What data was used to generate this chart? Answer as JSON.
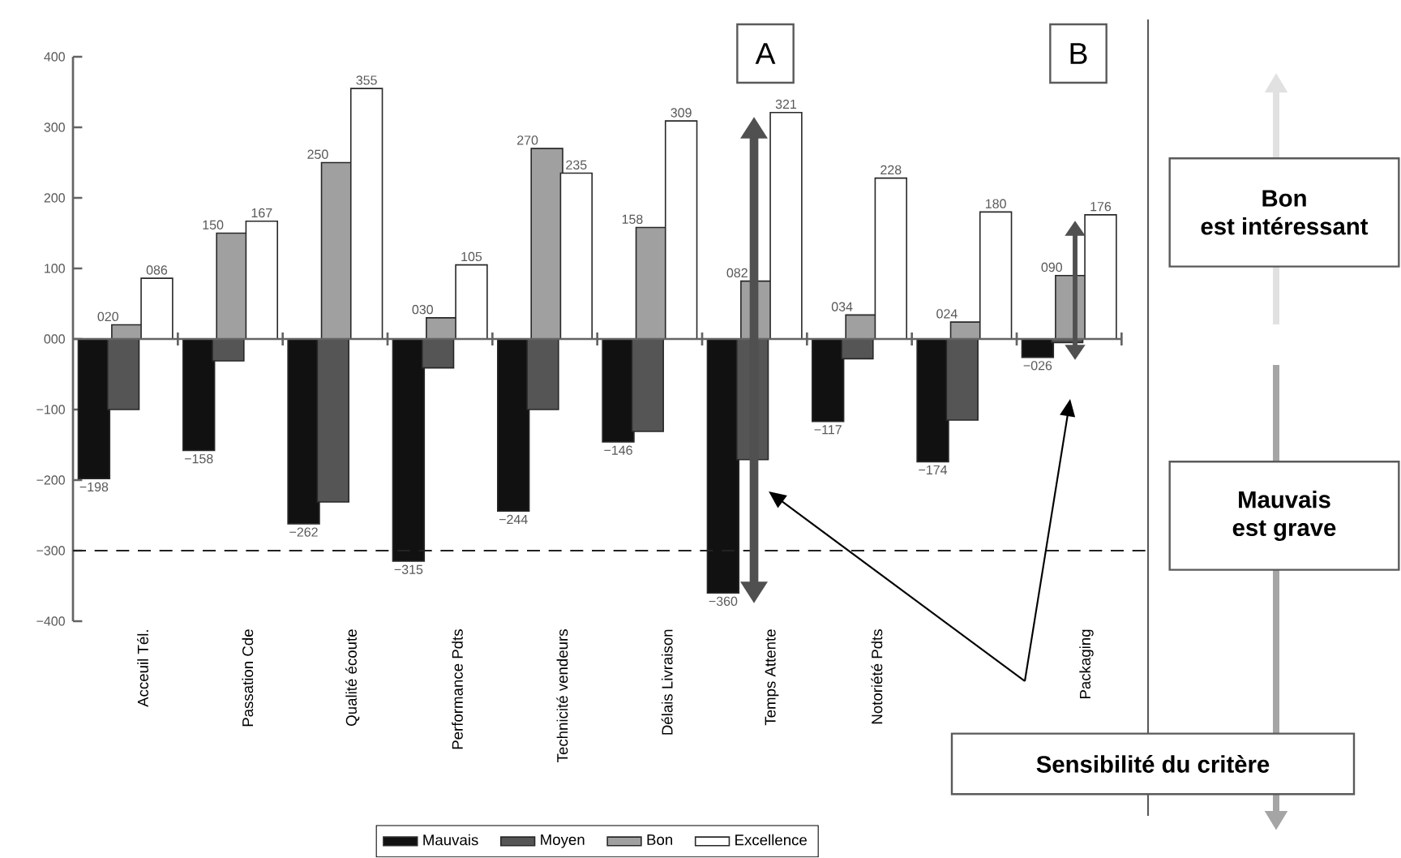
{
  "chart_data": {
    "type": "bar",
    "categories": [
      "Acceuil Tél.",
      "Passation Cde",
      "Qualité écoute",
      "Performance Pdts",
      "Technicité vendeurs",
      "Délais Livraison",
      "Temps Attente",
      "Notoriété Pdts",
      null,
      "Packaging"
    ],
    "series": [
      {
        "name": "Mauvais",
        "color": "#111111",
        "values": [
          -198,
          -158,
          -262,
          -315,
          -244,
          -146,
          -360,
          -117,
          -174,
          -26
        ],
        "value_labels": [
          "−198",
          "−158",
          "−262",
          "−315",
          "−244",
          "−146",
          "−360",
          "−117",
          "−174",
          "−026"
        ]
      },
      {
        "name": "Moyen",
        "color": "#555555",
        "values": [
          -100,
          -31,
          -231,
          -41,
          -100,
          -131,
          -171,
          -28,
          -115,
          -5
        ]
      },
      {
        "name": "Bon",
        "color": "#a0a0a0",
        "values": [
          20,
          150,
          250,
          30,
          270,
          158,
          82,
          34,
          24,
          90
        ],
        "value_labels": [
          "020",
          "150",
          "250",
          "030",
          "270",
          "158",
          "082",
          "034",
          "024",
          "090"
        ]
      },
      {
        "name": "Excellence",
        "color": "#ffffff",
        "values": [
          86,
          167,
          355,
          105,
          235,
          309,
          321,
          228,
          180,
          176
        ],
        "value_labels": [
          "086",
          "167",
          "355",
          "105",
          "235",
          "309",
          "321",
          "228",
          "180",
          "176"
        ]
      }
    ],
    "ylim": [
      -400,
      400
    ],
    "yticks": [
      400,
      300,
      200,
      100,
      {
        "value": 0,
        "label": "000"
      },
      {
        "value": -100,
        "label": "−100"
      },
      {
        "value": -200,
        "label": "−200"
      },
      {
        "value": -300,
        "label": "−300"
      },
      {
        "value": -400,
        "label": "−400"
      }
    ],
    "ref_lines": [
      {
        "axis": "y",
        "value": -300,
        "line_style": "dashed",
        "color": "#222222"
      }
    ],
    "annotations": [
      "A",
      "B",
      "Bon",
      "est intéressant",
      "Mauvais",
      "est grave",
      "Sensibilité du critère"
    ],
    "legend": "bottom"
  }
}
